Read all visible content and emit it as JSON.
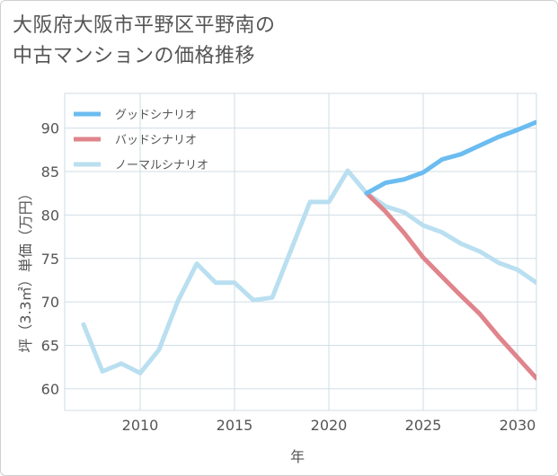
{
  "title_line1": "大阪府大阪市平野区平野南の",
  "title_line2": "中古マンションの価格推移",
  "chart_data": {
    "type": "line",
    "title": "大阪府大阪市平野区平野南の中古マンションの価格推移",
    "xlabel": "年",
    "ylabel": "坪（3.3㎡）単価（万円）",
    "xlim": [
      2006,
      2031
    ],
    "ylim": [
      57.5,
      94
    ],
    "xticks": [
      2010,
      2015,
      2020,
      2025,
      2030
    ],
    "yticks": [
      60,
      65,
      70,
      75,
      80,
      85,
      90
    ],
    "grid": true,
    "legend_position": "top-left",
    "series": [
      {
        "name": "グッドシナリオ",
        "color": "#6bbcf0",
        "x": [
          2022,
          2023,
          2024,
          2025,
          2026,
          2027,
          2028,
          2029,
          2030,
          2031
        ],
        "values": [
          82.5,
          83.7,
          84.1,
          84.9,
          86.4,
          87.0,
          88.0,
          89.0,
          89.8,
          90.7
        ]
      },
      {
        "name": "バッドシナリオ",
        "color": "#e0848c",
        "x": [
          2022,
          2023,
          2024,
          2025,
          2026,
          2027,
          2028,
          2029,
          2030,
          2031
        ],
        "values": [
          82.5,
          80.4,
          77.9,
          75.1,
          72.9,
          70.7,
          68.6,
          66.0,
          63.6,
          61.2
        ]
      },
      {
        "name": "ノーマルシナリオ",
        "color": "#b9dff0",
        "x": [
          2007,
          2008,
          2009,
          2010,
          2011,
          2012,
          2013,
          2014,
          2015,
          2016,
          2017,
          2018,
          2019,
          2020,
          2021,
          2022,
          2023,
          2024,
          2025,
          2026,
          2027,
          2028,
          2029,
          2030,
          2031
        ],
        "values": [
          67.4,
          62.0,
          62.9,
          61.8,
          64.5,
          70.1,
          74.4,
          72.2,
          72.2,
          70.2,
          70.5,
          76.0,
          81.5,
          81.5,
          85.1,
          82.5,
          81.0,
          80.3,
          78.8,
          78.0,
          76.7,
          75.8,
          74.5,
          73.7,
          72.2
        ]
      }
    ]
  }
}
